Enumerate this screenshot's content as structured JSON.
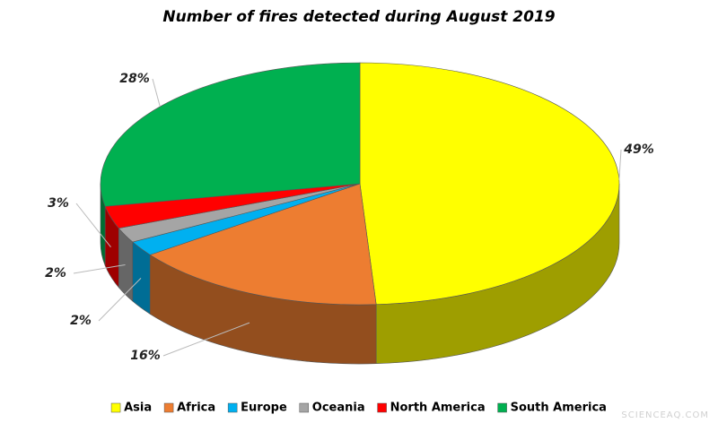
{
  "chart_data": {
    "type": "pie",
    "title": "Number of fires detected during August 2019",
    "categories": [
      "Asia",
      "Africa",
      "Europe",
      "Oceania",
      "North America",
      "South America"
    ],
    "values": [
      49,
      16,
      2,
      2,
      3,
      28
    ],
    "value_labels": [
      "49%",
      "16%",
      "2%",
      "2%",
      "3%",
      "28%"
    ],
    "colors": [
      "#ffff00",
      "#ed7d31",
      "#00b0f0",
      "#a5a5a5",
      "#ff0000",
      "#00b050"
    ],
    "legend": "bottom",
    "watermark": "SCIENCEAQ.COM"
  }
}
